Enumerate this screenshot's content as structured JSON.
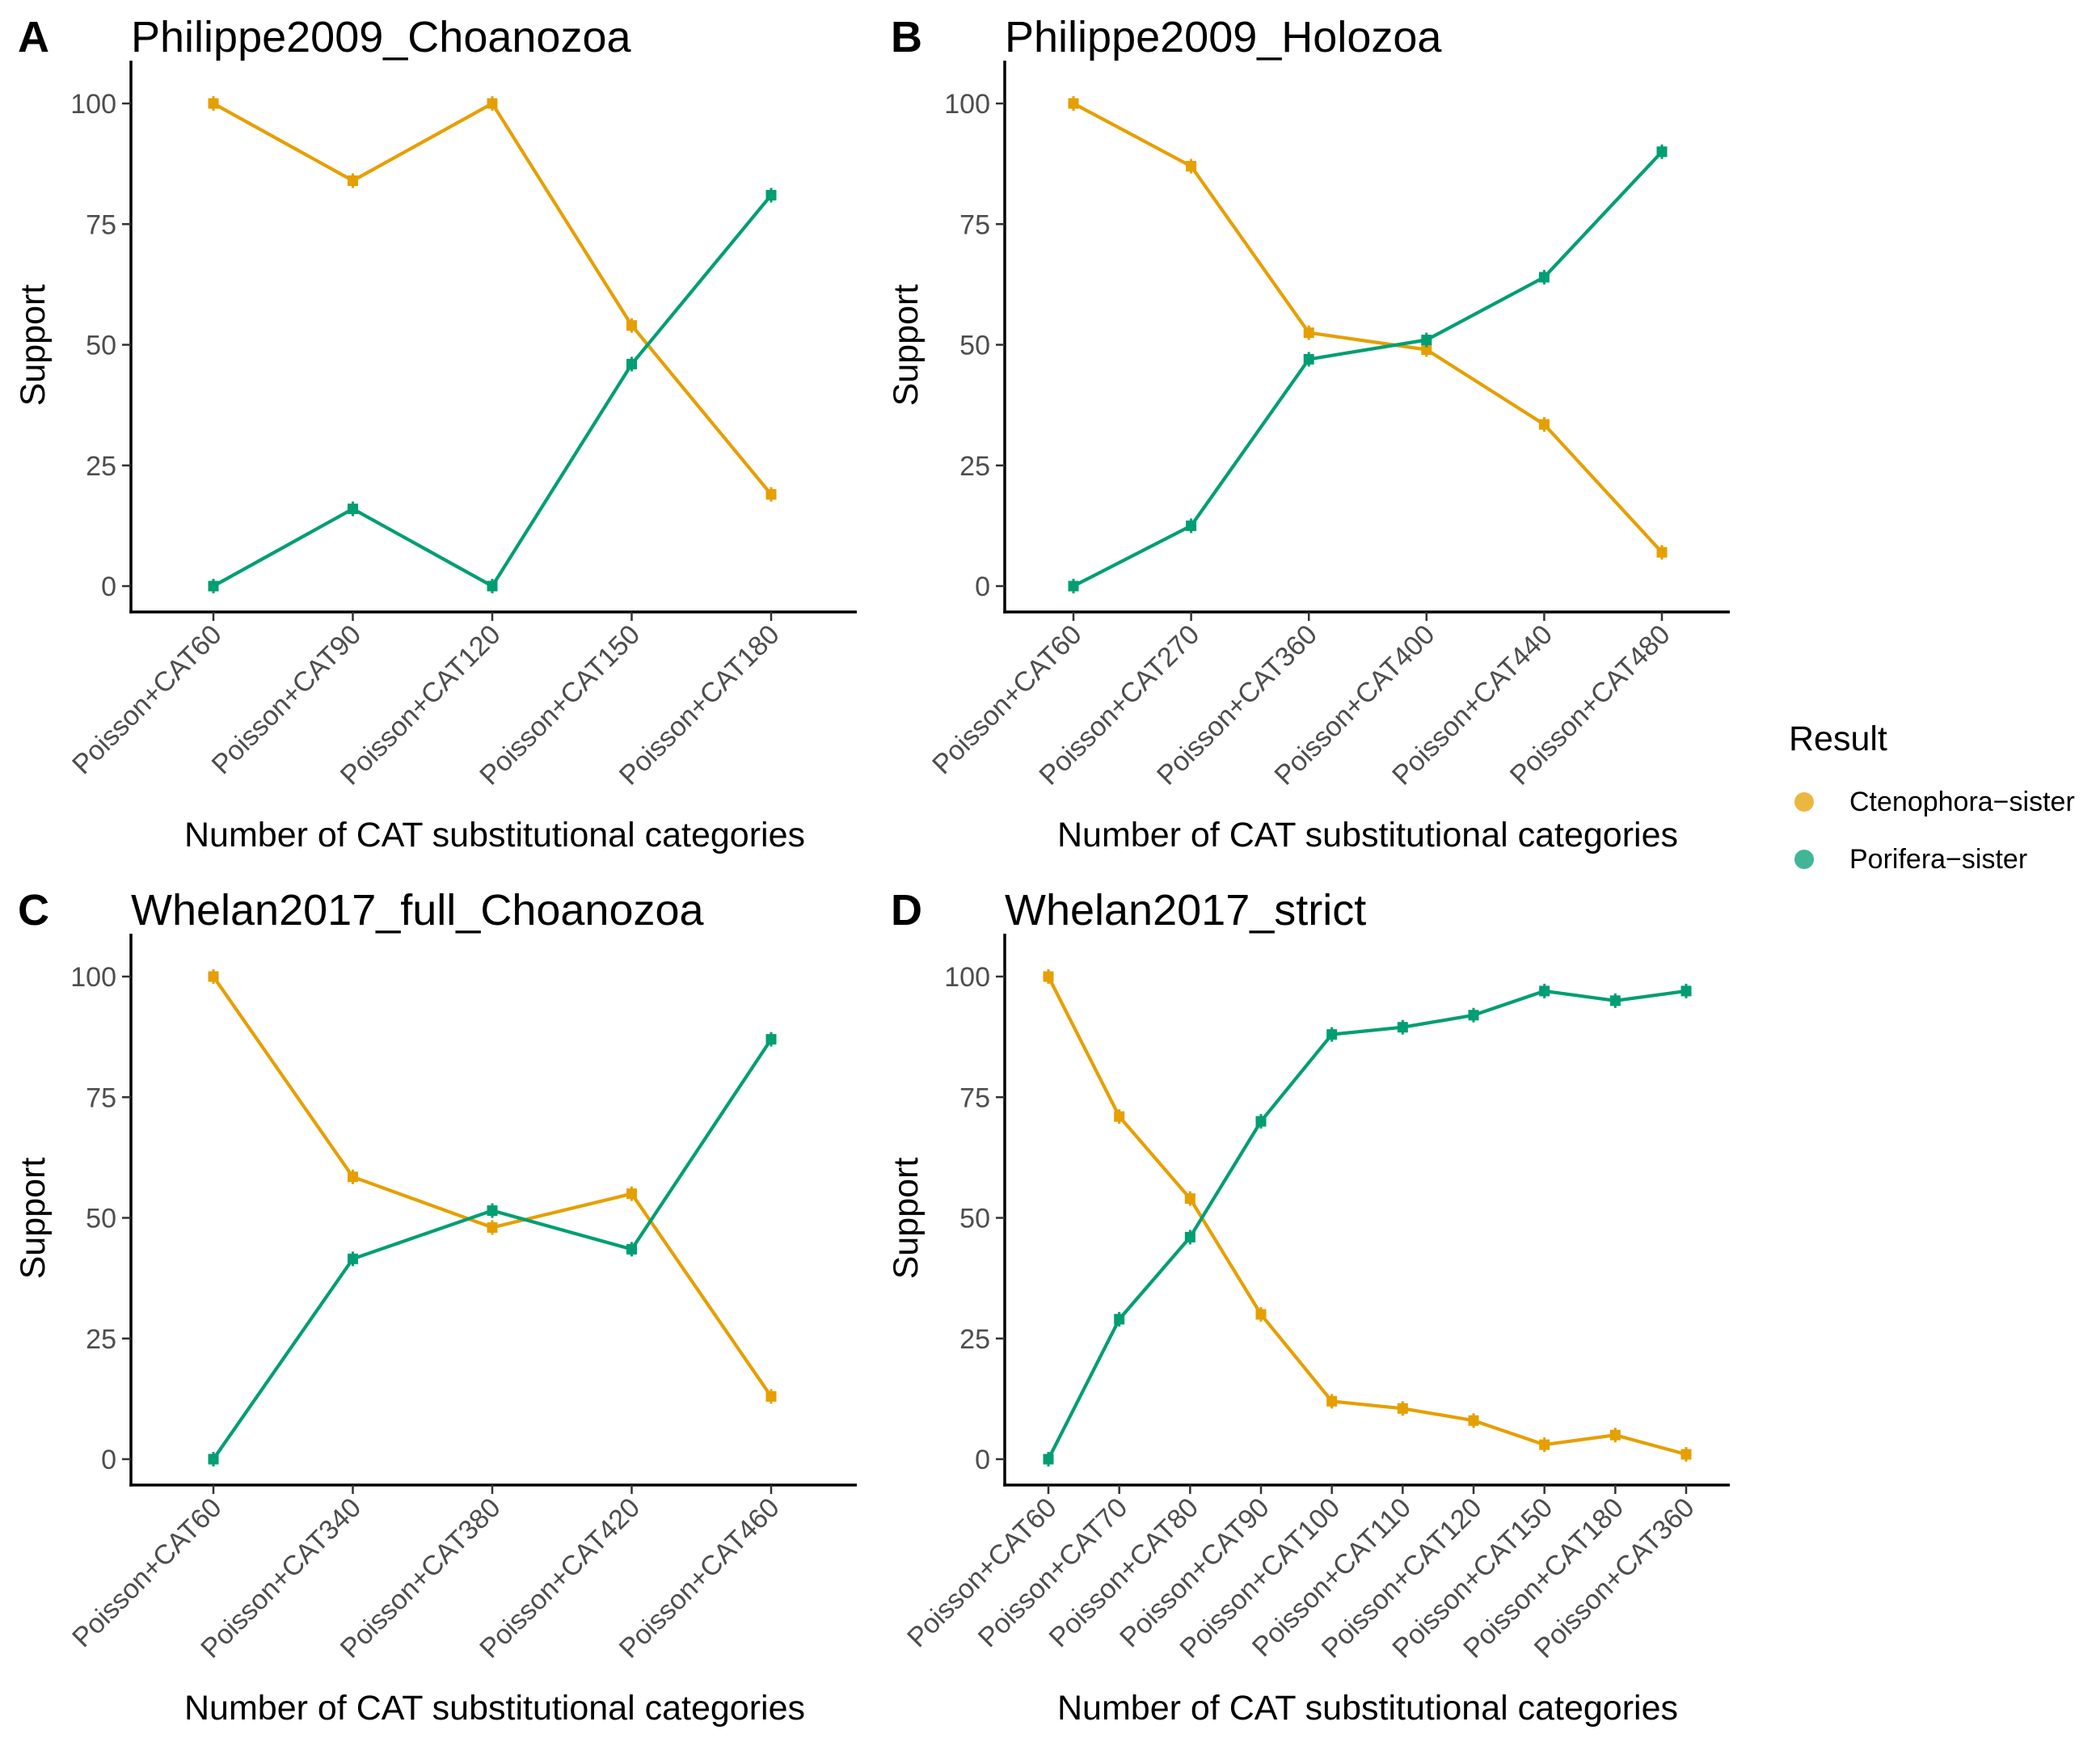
{
  "legend": {
    "title": "Result",
    "entries": [
      {
        "label": "Ctenophora−sister",
        "color": "#E69F00"
      },
      {
        "label": "Porifera−sister",
        "color": "#009E73"
      }
    ]
  },
  "chart_data": [
    {
      "type": "line",
      "panel": "A",
      "title": "Philippe2009_Choanozoa",
      "xlabel": "Number of CAT substitutional categories",
      "ylabel": "Support",
      "ylim": [
        0,
        100
      ],
      "yticks": [
        0,
        25,
        50,
        75,
        100
      ],
      "categories": [
        "Poisson+CAT60",
        "Poisson+CAT90",
        "Poisson+CAT120",
        "Poisson+CAT150",
        "Poisson+CAT180"
      ],
      "series": [
        {
          "name": "Ctenophora−sister",
          "color": "#E69F00",
          "values": [
            100,
            84,
            100,
            54,
            19
          ]
        },
        {
          "name": "Porifera−sister",
          "color": "#009E73",
          "values": [
            0,
            16,
            0,
            46,
            81
          ]
        }
      ]
    },
    {
      "type": "line",
      "panel": "B",
      "title": "Philippe2009_Holozoa",
      "xlabel": "Number of CAT substitutional categories",
      "ylabel": "Support",
      "ylim": [
        0,
        100
      ],
      "yticks": [
        0,
        25,
        50,
        75,
        100
      ],
      "categories": [
        "Poisson+CAT60",
        "Poisson+CAT270",
        "Poisson+CAT360",
        "Poisson+CAT400",
        "Poisson+CAT440",
        "Poisson+CAT480"
      ],
      "series": [
        {
          "name": "Ctenophora−sister",
          "color": "#E69F00",
          "values": [
            100,
            87,
            52.5,
            49,
            33.5,
            7
          ]
        },
        {
          "name": "Porifera−sister",
          "color": "#009E73",
          "values": [
            0,
            12.5,
            47,
            51,
            64,
            90
          ]
        }
      ]
    },
    {
      "type": "line",
      "panel": "C",
      "title": "Whelan2017_full_Choanozoa",
      "xlabel": "Number of CAT substitutional categories",
      "ylabel": "Support",
      "ylim": [
        0,
        100
      ],
      "yticks": [
        0,
        25,
        50,
        75,
        100
      ],
      "categories": [
        "Poisson+CAT60",
        "Poisson+CAT340",
        "Poisson+CAT380",
        "Poisson+CAT420",
        "Poisson+CAT460"
      ],
      "series": [
        {
          "name": "Ctenophora−sister",
          "color": "#E69F00",
          "values": [
            100,
            58.5,
            48,
            55,
            13
          ]
        },
        {
          "name": "Porifera−sister",
          "color": "#009E73",
          "values": [
            0,
            41.5,
            51.5,
            43.5,
            87
          ]
        }
      ]
    },
    {
      "type": "line",
      "panel": "D",
      "title": "Whelan2017_strict",
      "xlabel": "Number of CAT substitutional categories",
      "ylabel": "Support",
      "ylim": [
        0,
        100
      ],
      "yticks": [
        0,
        25,
        50,
        75,
        100
      ],
      "categories": [
        "Poisson+CAT60",
        "Poisson+CAT70",
        "Poisson+CAT80",
        "Poisson+CAT90",
        "Poisson+CAT100",
        "Poisson+CAT110",
        "Poisson+CAT120",
        "Poisson+CAT150",
        "Poisson+CAT180",
        "Poisson+CAT360"
      ],
      "series": [
        {
          "name": "Ctenophora−sister",
          "color": "#E69F00",
          "values": [
            100,
            71,
            54,
            30,
            12,
            10.5,
            8,
            3,
            5,
            1
          ]
        },
        {
          "name": "Porifera−sister",
          "color": "#009E73",
          "values": [
            0,
            29,
            46,
            70,
            88,
            89.5,
            92,
            97,
            95,
            97
          ]
        }
      ]
    }
  ]
}
